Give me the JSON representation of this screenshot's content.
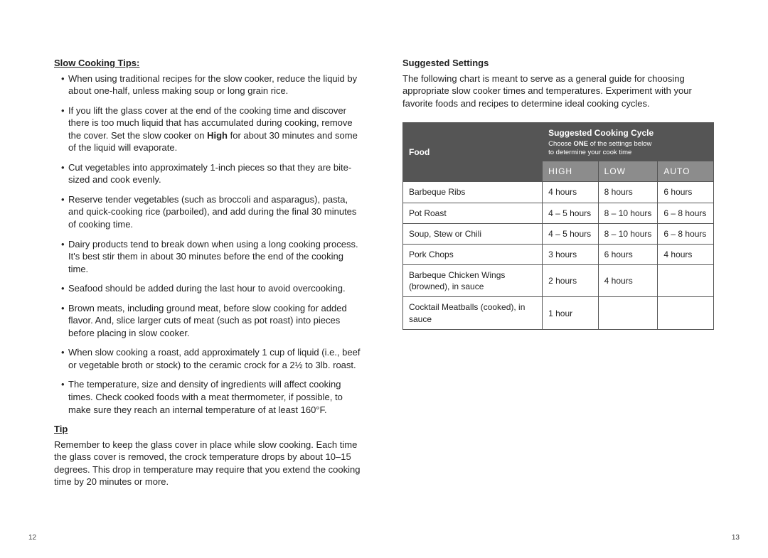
{
  "left": {
    "heading": "Slow Cooking Tips:",
    "bullets": [
      "When using traditional recipes for the slow cooker, reduce the liquid by about one-half, unless making soup or long grain rice.",
      "If you lift the glass cover at the end of the cooking time and discover there is too much liquid that has accumulated during cooking, remove the cover. Set the slow cooker on <strong>High</strong> for about 30 minutes and some of the liquid will evaporate.",
      "Cut vegetables into approximately 1-inch pieces so that they are bite-sized and cook evenly.",
      "Reserve tender vegetables (such as broccoli and asparagus), pasta, and quick-cooking rice (parboiled), and add during the final 30 minutes of cooking time.",
      "Dairy products tend to break down when using a long cooking process. It's best stir them in about 30 minutes before the end of the cooking time.",
      "Seafood should be added during the last hour to avoid overcooking.",
      "Brown meats, including ground meat, before slow cooking for added flavor. And, slice larger cuts of meat (such as pot roast) into pieces before placing in slow cooker.",
      "When slow cooking a roast, add approximately 1 cup of liquid (i.e., beef or vegetable broth or stock) to the ceramic crock for a 2½ to 3lb. roast.",
      "The temperature, size and density of ingredients will affect cooking times. Check cooked foods with a meat thermometer, if possible, to make sure they reach an internal temperature of at least 160°F."
    ],
    "tip_heading": "Tip",
    "tip_body": "Remember to keep the glass cover in place while slow cooking. Each time the glass cover is removed, the crock temperature drops by about 10–15 degrees. This drop in temperature may require that you extend the cooking time by 20 minutes or more.",
    "page_number": "12"
  },
  "right": {
    "heading": "Suggested Settings",
    "intro": "The following chart is meant to serve as a general guide for choosing appropriate slow cooker times and temperatures. Experiment with your favorite foods and recipes to determine ideal cooking cycles.",
    "table": {
      "food_header": "Food",
      "cycle_header_title": "Suggested Cooking Cycle",
      "cycle_header_sub_line1": "Choose <strong>ONE</strong> of the settings below",
      "cycle_header_sub_line2": "to determine your cook time",
      "columns": [
        "HIGH",
        "LOW",
        "AUTO"
      ],
      "rows": [
        {
          "food": "Barbeque Ribs",
          "high": "4 hours",
          "low": "8 hours",
          "auto": "6 hours"
        },
        {
          "food": "Pot Roast",
          "high": "4 – 5 hours",
          "low": "8 – 10 hours",
          "auto": "6 – 8 hours"
        },
        {
          "food": "Soup, Stew or Chili",
          "high": "4 – 5 hours",
          "low": "8 – 10 hours",
          "auto": "6 – 8 hours"
        },
        {
          "food": "Pork Chops",
          "high": "3 hours",
          "low": "6 hours",
          "auto": "4 hours"
        },
        {
          "food": "Barbeque Chicken Wings (browned), in sauce",
          "high": "2 hours",
          "low": "4 hours",
          "auto": ""
        },
        {
          "food": "Cocktail Meatballs (cooked), in sauce",
          "high": "1 hour",
          "low": "",
          "auto": ""
        }
      ],
      "col_widths": {
        "food": "46%",
        "time": "18%"
      }
    },
    "page_number": "13"
  },
  "colors": {
    "text": "#222222",
    "header_dark": "#555555",
    "header_mid": "#8c8c8c",
    "border": "#555555",
    "background": "#ffffff"
  }
}
